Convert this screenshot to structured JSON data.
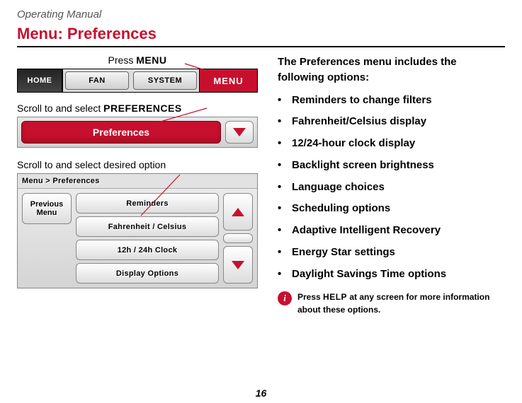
{
  "header": "Operating Manual",
  "title": "Menu: Preferences",
  "press": {
    "prefix": "Press ",
    "bold": "MENU"
  },
  "bar": {
    "home": "HOME",
    "fan": "FAN",
    "system": "SYSTEM",
    "menu": "MENU"
  },
  "scroll1": {
    "prefix": "Scroll to and select ",
    "bold": "PREFERENCES"
  },
  "pref_button": "Preferences",
  "scroll2": "Scroll to and select desired option",
  "breadcrumb": "Menu > Preferences",
  "prev_menu": "Previous\nMenu",
  "options": [
    "Reminders",
    "Fahrenheit / Celsius",
    "12h / 24h Clock",
    "Display Options"
  ],
  "right": {
    "lead": "The Preferences menu includes the following options:",
    "items": [
      "Reminders to change filters",
      "Fahrenheit/Celsius display",
      "12/24-hour clock display",
      "Backlight screen brightness",
      "Language choices",
      "Scheduling options",
      "Adaptive Intelligent Recovery",
      "Energy Star settings",
      "Daylight Savings Time options"
    ]
  },
  "tip": {
    "pre": "Press ",
    "bold": "HELP",
    "post": " at any screen for more information about these options."
  },
  "page_number": "16",
  "colors": {
    "accent": "#c8102e"
  }
}
